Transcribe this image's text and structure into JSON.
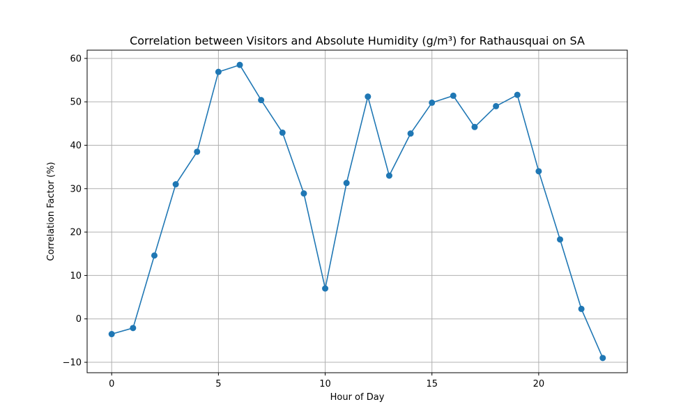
{
  "chart_data": {
    "type": "line",
    "title": "Correlation between Visitors and Absolute Humidity (g/m³) for Rathausquai on SA",
    "xlabel": "Hour of Day",
    "ylabel": "Correlation Factor (%)",
    "x": [
      0,
      1,
      2,
      3,
      4,
      5,
      6,
      7,
      8,
      9,
      10,
      11,
      12,
      13,
      14,
      15,
      16,
      17,
      18,
      19,
      20,
      21,
      22,
      23
    ],
    "series": [
      {
        "values": [
          -3.5,
          -2.1,
          14.6,
          31.0,
          38.5,
          56.9,
          58.5,
          50.4,
          42.9,
          28.9,
          7.0,
          31.3,
          51.2,
          33.0,
          42.7,
          49.8,
          51.4,
          44.2,
          49.0,
          51.6,
          34.0,
          18.3,
          2.3,
          -9.0
        ],
        "color": "#1f77b4",
        "marker": "circle"
      }
    ],
    "xlim": [
      -1.15,
      24.15
    ],
    "ylim": [
      -12.4,
      61.9
    ],
    "xticks": [
      0,
      5,
      10,
      15,
      20
    ],
    "yticks": [
      -10,
      0,
      10,
      20,
      30,
      40,
      50,
      60
    ],
    "xtick_labels": [
      "0",
      "5",
      "10",
      "15",
      "20"
    ],
    "ytick_labels": [
      "−10",
      "0",
      "10",
      "20",
      "30",
      "40",
      "50",
      "60"
    ],
    "grid": true,
    "grid_color": "#b0b0b0"
  }
}
